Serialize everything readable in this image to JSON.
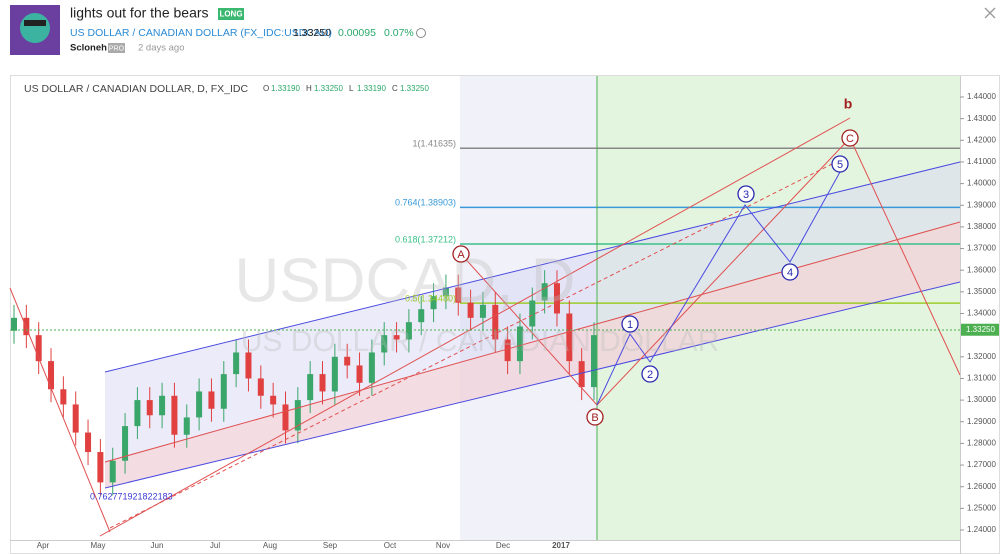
{
  "header": {
    "title": "lights out for the bears",
    "badge": "LONG",
    "symbol": "US DOLLAR / CANADIAN DOLLAR (FX_IDC:USDCAD)",
    "price": "1.33250",
    "change": "0.00095",
    "change_pct": "0.07%",
    "author": "Scloneh",
    "author_badge": "PRO",
    "time": "2 days ago"
  },
  "chart": {
    "legend": {
      "name": "US DOLLAR / CANADIAN DOLLAR, D, FX_IDC",
      "o_label": "O",
      "o": "1.33190",
      "h_label": "H",
      "h": "1.33250",
      "l_label": "L",
      "l": "1.33190",
      "c_label": "C",
      "c": "1.33250"
    },
    "watermark": {
      "symbol": "USDCAD, D",
      "name": "US DOLLAR / CANADIAN DOLLAR"
    },
    "ylim": [
      1.24,
      1.44
    ],
    "yticks": [
      {
        "value": 1.44,
        "label": "1.44000"
      },
      {
        "value": 1.43,
        "label": "1.43000"
      },
      {
        "value": 1.42,
        "label": "1.42000"
      },
      {
        "value": 1.41,
        "label": "1.41000"
      },
      {
        "value": 1.4,
        "label": "1.40000"
      },
      {
        "value": 1.39,
        "label": "1.39000"
      },
      {
        "value": 1.38,
        "label": "1.38000"
      },
      {
        "value": 1.37,
        "label": "1.37000"
      },
      {
        "value": 1.36,
        "label": "1.36000"
      },
      {
        "value": 1.35,
        "label": "1.35000"
      },
      {
        "value": 1.34,
        "label": "1.34000"
      },
      {
        "value": 1.32,
        "label": "1.32000"
      },
      {
        "value": 1.31,
        "label": "1.31000"
      },
      {
        "value": 1.3,
        "label": "1.30000"
      },
      {
        "value": 1.29,
        "label": "1.29000"
      },
      {
        "value": 1.28,
        "label": "1.28000"
      },
      {
        "value": 1.27,
        "label": "1.27000"
      },
      {
        "value": 1.26,
        "label": "1.26000"
      },
      {
        "value": 1.25,
        "label": "1.25000"
      },
      {
        "value": 1.24,
        "label": "1.24000"
      }
    ],
    "last_price": {
      "value": 1.3325,
      "label": "1.33250"
    },
    "xlabels": [
      "Apr",
      "May",
      "Jun",
      "Jul",
      "Aug",
      "Sep",
      "Oct",
      "Nov",
      "Dec",
      "2017"
    ],
    "candles": {
      "open": [
        1.332,
        1.338,
        1.33,
        1.318,
        1.305,
        1.298,
        1.285,
        1.276,
        1.262,
        1.272,
        1.288,
        1.3,
        1.293,
        1.302,
        1.284,
        1.292,
        1.304,
        1.296,
        1.312,
        1.322,
        1.31,
        1.302,
        1.298,
        1.286,
        1.3,
        1.312,
        1.304,
        1.32,
        1.316,
        1.308,
        1.322,
        1.33,
        1.328,
        1.336,
        1.342,
        1.348,
        1.352,
        1.345,
        1.338,
        1.344,
        1.328,
        1.318,
        1.334,
        1.346,
        1.354,
        1.34,
        1.318,
        1.306
      ],
      "high": [
        1.344,
        1.344,
        1.336,
        1.324,
        1.311,
        1.304,
        1.291,
        1.282,
        1.278,
        1.294,
        1.306,
        1.306,
        1.308,
        1.308,
        1.298,
        1.31,
        1.31,
        1.318,
        1.328,
        1.328,
        1.316,
        1.308,
        1.304,
        1.306,
        1.318,
        1.318,
        1.326,
        1.326,
        1.322,
        1.328,
        1.336,
        1.336,
        1.342,
        1.348,
        1.354,
        1.358,
        1.358,
        1.351,
        1.35,
        1.35,
        1.334,
        1.34,
        1.352,
        1.36,
        1.36,
        1.346,
        1.324,
        1.336
      ],
      "low": [
        1.326,
        1.324,
        1.312,
        1.299,
        1.292,
        1.279,
        1.27,
        1.256,
        1.256,
        1.266,
        1.282,
        1.287,
        1.287,
        1.278,
        1.278,
        1.286,
        1.29,
        1.29,
        1.306,
        1.304,
        1.296,
        1.292,
        1.28,
        1.28,
        1.294,
        1.298,
        1.298,
        1.31,
        1.302,
        1.302,
        1.316,
        1.322,
        1.322,
        1.33,
        1.336,
        1.342,
        1.339,
        1.332,
        1.332,
        1.322,
        1.312,
        1.312,
        1.328,
        1.34,
        1.334,
        1.312,
        1.3,
        1.3
      ],
      "close": [
        1.338,
        1.33,
        1.318,
        1.305,
        1.298,
        1.285,
        1.276,
        1.262,
        1.272,
        1.288,
        1.3,
        1.293,
        1.302,
        1.284,
        1.292,
        1.304,
        1.296,
        1.312,
        1.322,
        1.31,
        1.302,
        1.298,
        1.286,
        1.3,
        1.312,
        1.304,
        1.32,
        1.316,
        1.308,
        1.322,
        1.33,
        1.328,
        1.336,
        1.342,
        1.348,
        1.352,
        1.345,
        1.338,
        1.344,
        1.328,
        1.318,
        1.334,
        1.346,
        1.354,
        1.34,
        1.318,
        1.306,
        1.33
      ]
    },
    "fib_levels": [
      {
        "value": 1.41635,
        "label": "1(1.41635)",
        "color": "#888888"
      },
      {
        "value": 1.38903,
        "label": "0.764(1.38903)",
        "color": "#3a9ad9"
      },
      {
        "value": 1.37212,
        "label": "0.618(1.37212)",
        "color": "#3cc08a"
      },
      {
        "value": 1.3448,
        "label": "0.5(1.34480)",
        "color": "#9ccc2a"
      }
    ],
    "fib_note": "0.762771921822183",
    "waves": [
      "A",
      "B",
      "C",
      "1",
      "2",
      "3",
      "4",
      "5",
      "b"
    ]
  }
}
